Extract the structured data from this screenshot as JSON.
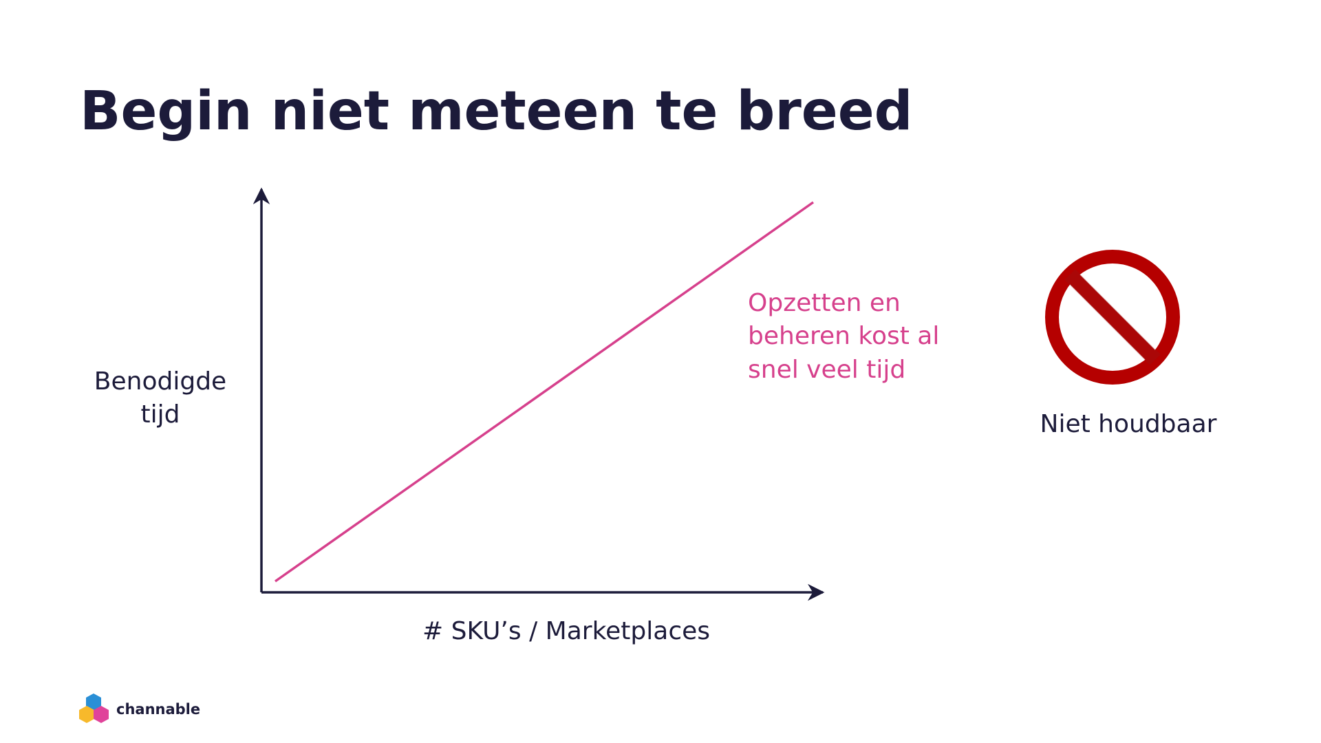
{
  "slide": {
    "title": "Begin niet meteen te breed",
    "y_axis_label": [
      "Benodigde",
      "tijd"
    ],
    "x_axis_label": "# SKU’s / Marketplaces",
    "annotation": [
      "Opzetten en",
      "beheren kost al",
      "snel veel tijd"
    ],
    "verdict": "Niet houdbaar",
    "logo": "channable"
  }
}
